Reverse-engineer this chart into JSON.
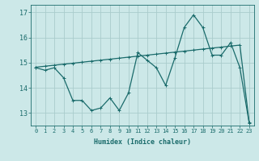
{
  "xlabel": "Humidex (Indice chaleur)",
  "bg_color": "#cce8e8",
  "grid_color": "#b0d8d8",
  "line_color": "#1a6b6b",
  "x_values": [
    0,
    1,
    2,
    3,
    4,
    5,
    6,
    7,
    8,
    9,
    10,
    11,
    12,
    13,
    14,
    15,
    16,
    17,
    18,
    19,
    20,
    21,
    22,
    23
  ],
  "y_humidex": [
    14.8,
    14.7,
    14.8,
    14.4,
    13.5,
    13.5,
    13.1,
    13.2,
    13.6,
    13.1,
    13.8,
    15.4,
    15.1,
    14.8,
    14.1,
    15.2,
    16.4,
    16.9,
    16.4,
    15.3,
    15.3,
    15.8,
    14.8,
    12.6
  ],
  "trend_x": [
    0,
    1,
    2,
    3,
    4,
    5,
    6,
    7,
    8,
    9,
    10,
    11,
    12,
    13,
    14,
    15,
    16,
    17,
    18,
    19,
    20,
    21,
    22,
    23
  ],
  "trend_y": [
    14.82,
    14.86,
    14.9,
    14.94,
    14.98,
    15.02,
    15.06,
    15.1,
    15.14,
    15.18,
    15.22,
    15.26,
    15.3,
    15.34,
    15.38,
    15.42,
    15.46,
    15.5,
    15.54,
    15.58,
    15.62,
    15.66,
    15.7,
    12.62
  ],
  "ylim": [
    12.5,
    17.3
  ],
  "yticks": [
    13,
    14,
    15,
    16,
    17
  ],
  "xticks": [
    0,
    1,
    2,
    3,
    4,
    5,
    6,
    7,
    8,
    9,
    10,
    11,
    12,
    13,
    14,
    15,
    16,
    17,
    18,
    19,
    20,
    21,
    22,
    23
  ],
  "xlim": [
    -0.5,
    23.5
  ]
}
